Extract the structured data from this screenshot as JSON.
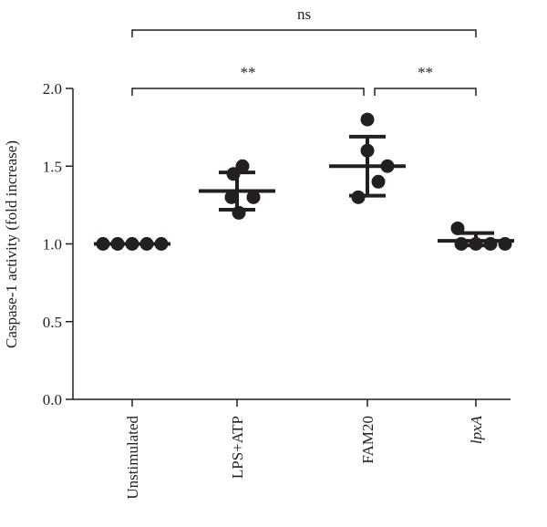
{
  "chart_data": {
    "type": "scatter",
    "title": "",
    "xlabel": "",
    "ylabel": "Caspase-1 activity (fold increase)",
    "ylim": [
      0,
      2.0
    ],
    "yticks": [
      "0.0",
      "0.5",
      "1.0",
      "1.5",
      "2.0"
    ],
    "grid": false,
    "categories": [
      "Unstimulated",
      "LPS+ATP",
      "FAM20",
      "lpxA"
    ],
    "italic_categories": [
      "lpxA"
    ],
    "groups": [
      {
        "category": "Unstimulated",
        "points": [
          1.0,
          1.0,
          1.0,
          1.0,
          1.0
        ],
        "mean": 1.0,
        "sd_upper": 1.0,
        "sd_lower": 1.0
      },
      {
        "category": "LPS+ATP",
        "points": [
          1.5,
          1.45,
          1.3,
          1.3,
          1.2
        ],
        "mean": 1.34,
        "sd_upper": 1.46,
        "sd_lower": 1.22
      },
      {
        "category": "FAM20",
        "points": [
          1.8,
          1.6,
          1.5,
          1.4,
          1.3
        ],
        "mean": 1.5,
        "sd_upper": 1.69,
        "sd_lower": 1.31
      },
      {
        "category": "lpxA",
        "points": [
          1.1,
          1.0,
          1.0,
          1.0,
          1.0
        ],
        "mean": 1.02,
        "sd_upper": 1.07,
        "sd_lower": 0.99
      }
    ],
    "significance": [
      {
        "from": "Unstimulated",
        "to": "lpxA",
        "label": "ns"
      },
      {
        "from": "Unstimulated",
        "to": "FAM20",
        "label": "**"
      },
      {
        "from": "FAM20",
        "to": "lpxA",
        "label": "**"
      }
    ],
    "colors": {
      "ink": "#231f20",
      "background": "#ffffff"
    }
  }
}
